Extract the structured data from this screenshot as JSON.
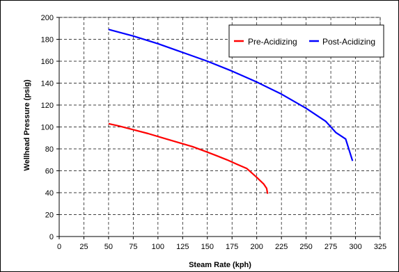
{
  "chart_data": {
    "type": "line",
    "title": "",
    "xlabel": "Steam Rate (kph)",
    "ylabel": "Wellhead Pressure (psig)",
    "xlim": [
      0,
      325
    ],
    "ylim": [
      0,
      200
    ],
    "x_ticks": [
      0,
      25,
      50,
      75,
      100,
      125,
      150,
      175,
      200,
      225,
      250,
      275,
      300,
      325
    ],
    "y_ticks": [
      0,
      20,
      40,
      60,
      80,
      100,
      120,
      140,
      160,
      180,
      200
    ],
    "grid": true,
    "grid_style": "dashed",
    "legend_position": "top-right",
    "series": [
      {
        "name": "Pre-Acidizing",
        "color": "#ff0000",
        "x": [
          50,
          60,
          75,
          90,
          105,
          120,
          135,
          150,
          160,
          170,
          180,
          190,
          200,
          207,
          210,
          211
        ],
        "y": [
          103,
          101,
          97.5,
          94,
          90,
          86,
          82,
          77,
          73.5,
          70,
          66,
          62,
          54,
          48,
          44,
          39
        ]
      },
      {
        "name": "Post-Acidizing",
        "color": "#0000ff",
        "x": [
          50,
          75,
          100,
          125,
          150,
          175,
          200,
          225,
          250,
          270,
          280,
          290,
          297
        ],
        "y": [
          189,
          183,
          176,
          168,
          160,
          151,
          141,
          130,
          117,
          105,
          95,
          89,
          69
        ]
      }
    ]
  }
}
